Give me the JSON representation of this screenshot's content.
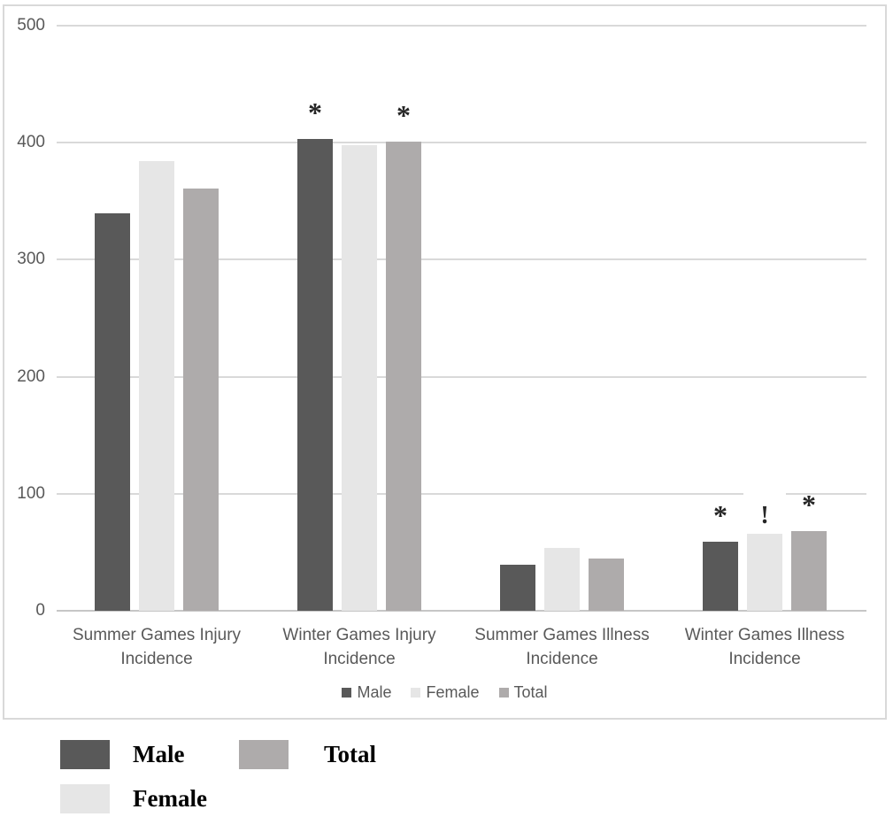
{
  "chart_data": {
    "type": "bar",
    "title": "",
    "xlabel": "",
    "ylabel": "",
    "ylim": [
      0,
      500
    ],
    "yticks": [
      0,
      100,
      200,
      300,
      400,
      500
    ],
    "grid": "horizontal",
    "gridline_color": "#d9d9d9",
    "axis_line_color": "#c6c6c6",
    "text_color": "#595959",
    "plot_border_color": "#d9d9d9",
    "legend_position": "bottom-inside",
    "categories": [
      "Summer Games Injury Incidence",
      "Winter Games Injury Incidence",
      "Summer Games Illness Incidence",
      "Winter Games Illness Incidence"
    ],
    "category_lines": [
      [
        "Summer Games Injury",
        "Incidence"
      ],
      [
        "Winter Games Injury",
        "Incidence"
      ],
      [
        "Summer Games Illness",
        "Incidence"
      ],
      [
        "Winter Games Illness",
        "Incidence"
      ]
    ],
    "series": [
      {
        "name": "Male",
        "color": "#595959",
        "values": [
          340,
          403,
          39,
          59
        ]
      },
      {
        "name": "Female",
        "color": "#e6e6e6",
        "values": [
          384,
          398,
          54,
          66
        ]
      },
      {
        "name": "Total",
        "color": "#aeabab",
        "values": [
          361,
          401,
          45,
          68
        ]
      }
    ],
    "annotations": [
      {
        "category_index": 1,
        "series_index": 0,
        "symbol": "*",
        "boxed": false
      },
      {
        "category_index": 1,
        "series_index": 2,
        "symbol": "*",
        "boxed": false
      },
      {
        "category_index": 3,
        "series_index": 0,
        "symbol": "*",
        "boxed": false
      },
      {
        "category_index": 3,
        "series_index": 1,
        "symbol": "!",
        "boxed": true
      },
      {
        "category_index": 3,
        "series_index": 2,
        "symbol": "*",
        "boxed": false
      }
    ]
  },
  "inner_legend": {
    "items": [
      {
        "label": "Male"
      },
      {
        "label": "Female"
      },
      {
        "label": "Total"
      }
    ]
  },
  "outer_legend": {
    "items": [
      {
        "label": "Male",
        "color": "#595959"
      },
      {
        "label": "Total",
        "color": "#aeabab"
      },
      {
        "label": "Female",
        "color": "#e6e6e6"
      }
    ]
  }
}
